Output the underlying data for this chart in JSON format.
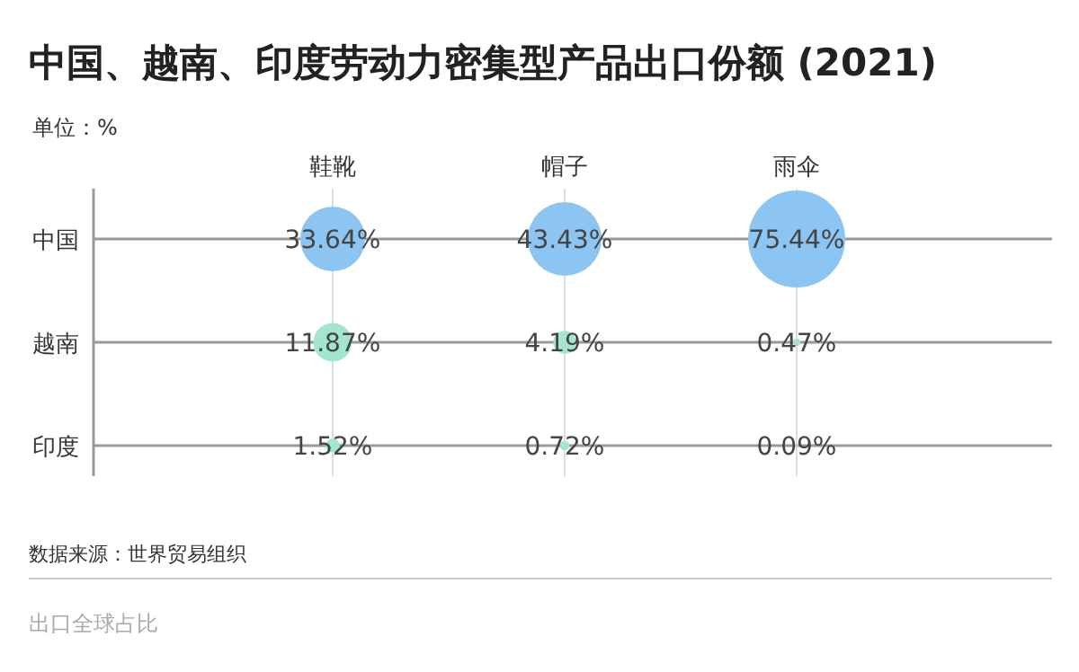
{
  "chart_data": {
    "type": "heatmap",
    "title": "中国、越南、印度劳动力密集型产品出口份额 (2021)",
    "ylabel": "单位：%",
    "categories": [
      "鞋靴",
      "帽子",
      "雨伞"
    ],
    "y_categories": [
      "中国",
      "越南",
      "印度"
    ],
    "cells": [
      [
        33.64,
        43.43,
        75.44
      ],
      [
        11.87,
        4.19,
        0.47
      ],
      [
        1.52,
        0.72,
        0.09
      ]
    ],
    "cell_labels": [
      [
        "33.64%",
        "43.43%",
        "75.44%"
      ],
      [
        "11.87%",
        "4.19%",
        "0.47%"
      ],
      [
        "1.52%",
        "0.72%",
        "0.09%"
      ]
    ],
    "colors": [
      "#8cc4f2",
      "#a3e6cf",
      "#a3e6cf"
    ],
    "grid": true,
    "annotations": [
      "数据来源：世界贸易组织",
      "出口全球占比"
    ]
  }
}
